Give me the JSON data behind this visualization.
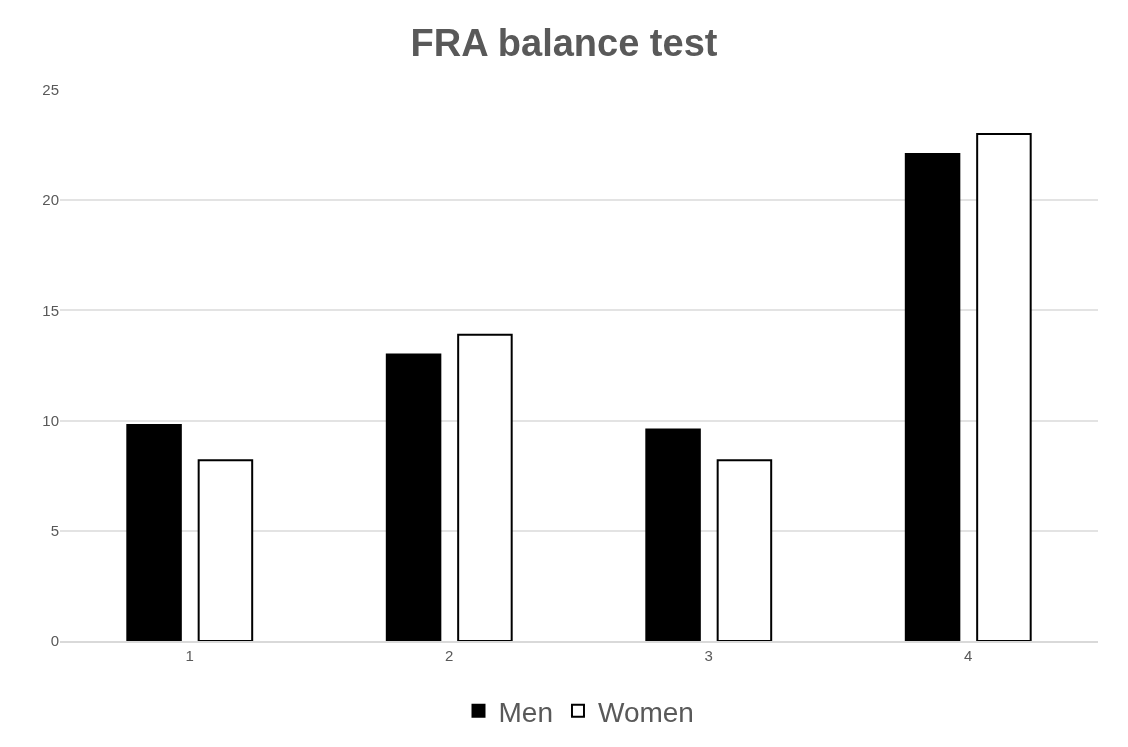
{
  "chart_data": {
    "type": "bar",
    "title": "FRA balance test",
    "categories": [
      "1",
      "2",
      "3",
      "4"
    ],
    "series": [
      {
        "name": "Men",
        "color": "#000000",
        "values": [
          9.8,
          13.0,
          9.6,
          22.1
        ]
      },
      {
        "name": "Women",
        "color": "#ffffff",
        "values": [
          8.2,
          13.9,
          8.2,
          23.0
        ]
      }
    ],
    "ylim": [
      0,
      25
    ],
    "yticks": [
      0,
      5,
      10,
      15,
      20,
      25
    ],
    "grid": "y",
    "legend": "bottom"
  }
}
